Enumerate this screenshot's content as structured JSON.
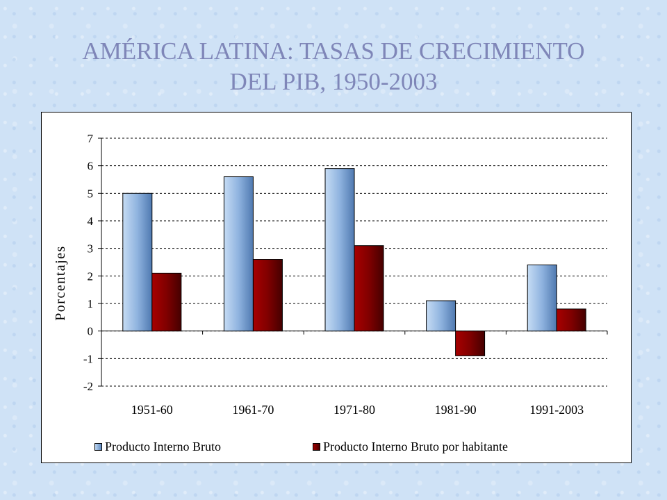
{
  "title": {
    "line1": "AMÉRICA LATINA: TASAS DE CRECIMIENTO",
    "line2": "DEL PIB, 1950-2003"
  },
  "chart_data": {
    "type": "bar",
    "categories": [
      "1951-60",
      "1961-70",
      "1971-80",
      "1981-90",
      "1991-2003"
    ],
    "series": [
      {
        "name": "Producto Interno Bruto",
        "values": [
          5.0,
          5.6,
          5.9,
          1.1,
          2.4
        ],
        "color": "#7fa8d8"
      },
      {
        "name": "Producto Interno Bruto por habitante",
        "values": [
          2.1,
          2.6,
          3.1,
          -0.9,
          0.8
        ],
        "color": "#7a0000"
      }
    ],
    "ylabel": "Porcentajes",
    "ylim": [
      -2,
      7
    ],
    "yticks": [
      "-2",
      "-1",
      "0",
      "1",
      "2",
      "3",
      "4",
      "5",
      "6",
      "7"
    ],
    "grid": "horizontal dashed",
    "legend_position": "bottom"
  },
  "legend": {
    "series1": "Producto Interno Bruto",
    "series2": "Producto Interno Bruto por habitante"
  }
}
